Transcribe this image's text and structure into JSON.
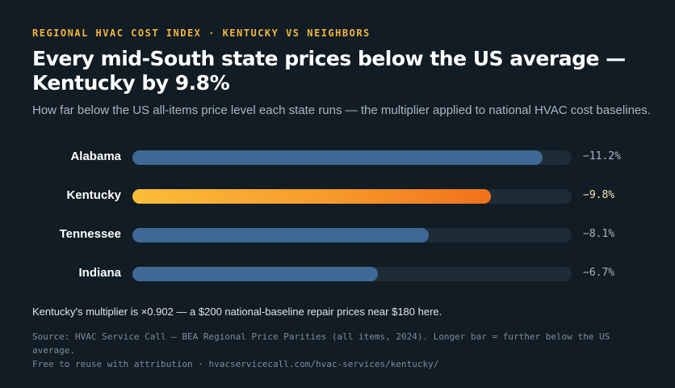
{
  "header": {
    "kicker": "REGIONAL HVAC COST INDEX · KENTUCKY VS NEIGHBORS",
    "title": "Every mid-South state prices below the US average — Kentucky by 9.8%",
    "subtitle": "How far below the US all-items price level each state runs — the multiplier applied to national HVAC cost baselines."
  },
  "chart_data": {
    "type": "bar",
    "orientation": "horizontal",
    "categories": [
      "Alabama",
      "Kentucky",
      "Tennessee",
      "Indiana"
    ],
    "values": [
      -11.2,
      -9.8,
      -8.1,
      -6.7
    ],
    "value_labels": [
      "−11.2%",
      "−9.8%",
      "−8.1%",
      "−6.7%"
    ],
    "highlight": "Kentucky",
    "xlim": [
      0,
      12
    ],
    "colors": {
      "default": "#3f6894",
      "highlight": "#f79a2b",
      "track": "#1f2c36"
    }
  },
  "footer": {
    "note": "Kentucky's multiplier is ×0.902 — a $200 national-baseline repair prices near $180 here.",
    "source": "Source: HVAC Service Call — BEA Regional Price Parities (all items, 2024). Longer bar = further below the US average.",
    "attribution": "Free to reuse with attribution · hvacservicecall.com/hvac-services/kentucky/"
  }
}
